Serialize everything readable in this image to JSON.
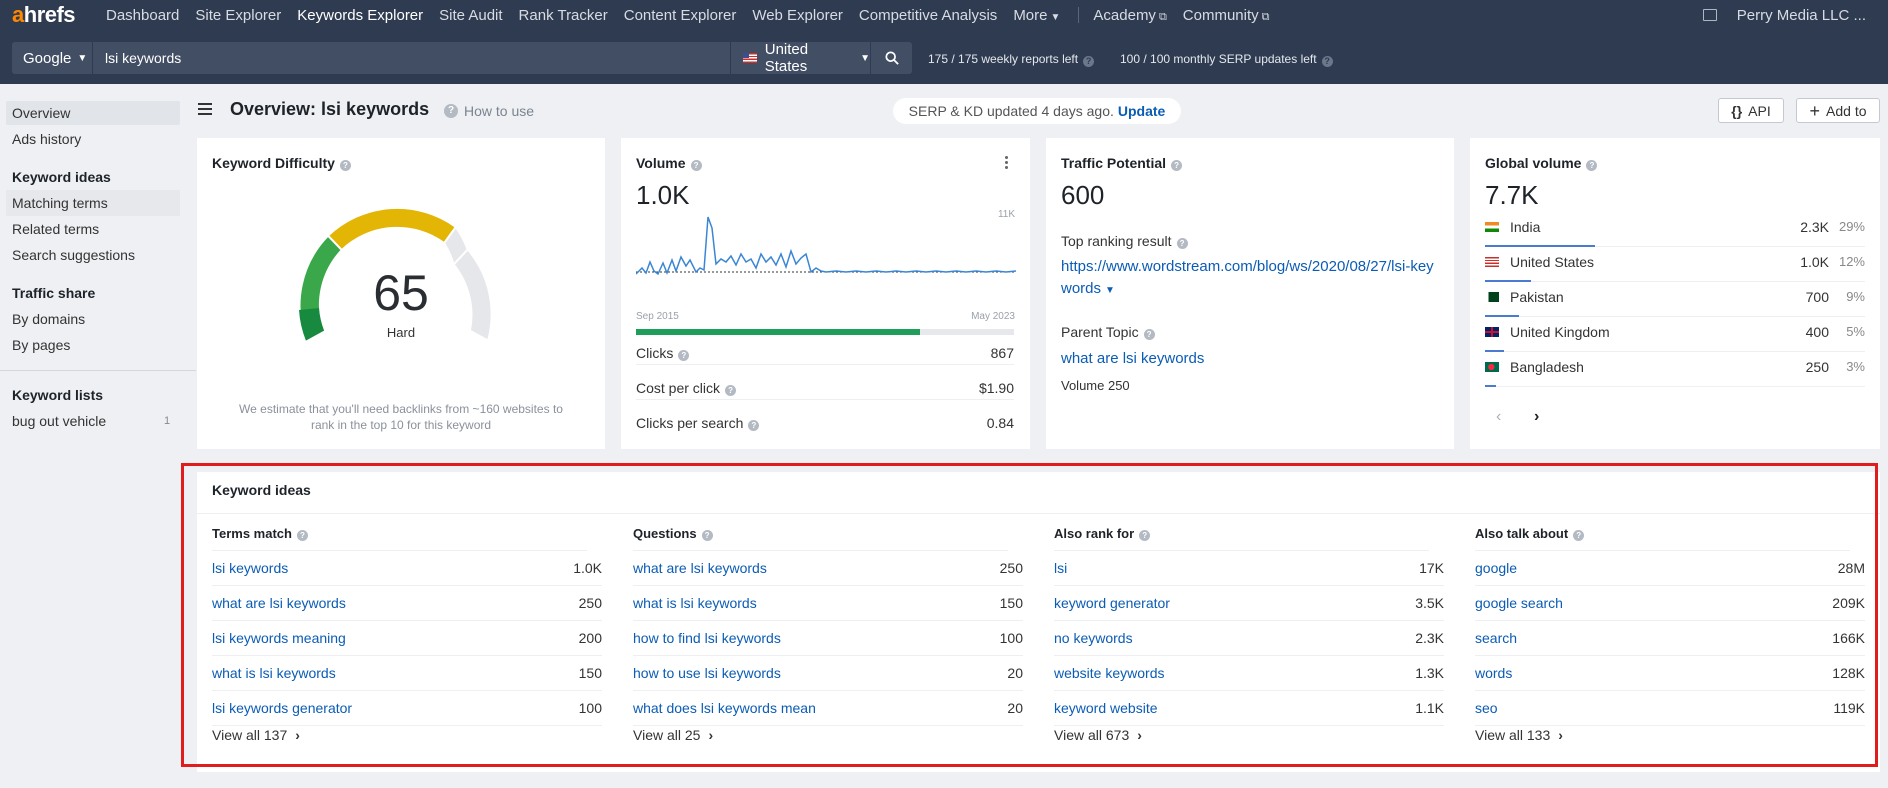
{
  "brand": {
    "logo_a": "a",
    "logo_rest": "hrefs"
  },
  "nav": {
    "items": [
      "Dashboard",
      "Site Explorer",
      "Keywords Explorer",
      "Site Audit",
      "Rank Tracker",
      "Content Explorer",
      "Web Explorer",
      "Competitive Analysis",
      "More"
    ],
    "external": [
      "Academy",
      "Community"
    ],
    "account": "Perry Media LLC ..."
  },
  "search": {
    "engine": "Google",
    "query": "lsi keywords",
    "country": "United States",
    "weekly_quota": "175  /  175  weekly reports left",
    "monthly_quota": "100  /  100  monthly SERP updates left"
  },
  "sidebar": {
    "overview": "Overview",
    "ads_history": "Ads history",
    "keyword_ideas_head": "Keyword ideas",
    "matching_terms": "Matching terms",
    "related_terms": "Related terms",
    "search_suggestions": "Search suggestions",
    "traffic_share_head": "Traffic share",
    "by_domains": "By domains",
    "by_pages": "By pages",
    "keyword_lists_head": "Keyword lists",
    "list_name": "bug out vehicle",
    "list_count": "1"
  },
  "header": {
    "title": "Overview: lsi keywords",
    "how_to": "How to use",
    "serp_status": "SERP & KD updated 4 days ago.",
    "update": "Update",
    "api": "API",
    "add_to": "Add to"
  },
  "kd": {
    "title": "Keyword Difficulty",
    "value": "65",
    "label": "Hard",
    "note": "We estimate that you'll need backlinks from ~160 websites to rank in the top 10 for this keyword"
  },
  "volume": {
    "title": "Volume",
    "value": "1.0K",
    "trend_max": "11K",
    "trend_start": "Sep 2015",
    "trend_end": "May 2023",
    "clicks_share": 0.75,
    "clicks_label": "Clicks",
    "clicks": "867",
    "cpc_label": "Cost per click",
    "cpc": "$1.90",
    "cps_label": "Clicks per search",
    "cps": "0.84"
  },
  "traffic": {
    "title": "Traffic Potential",
    "value": "600",
    "top_result_label": "Top ranking result",
    "top_result_url": "https://www.wordstream.com/blog/ws/2020/08/27/lsi-keywords",
    "parent_label": "Parent Topic",
    "parent_topic": "what are lsi keywords",
    "parent_volume": "Volume 250"
  },
  "global": {
    "title": "Global volume",
    "value": "7.7K",
    "countries": [
      {
        "name": "India",
        "value": "2.3K",
        "pct": "29%",
        "share": 0.29
      },
      {
        "name": "United States",
        "value": "1.0K",
        "pct": "12%",
        "share": 0.12
      },
      {
        "name": "Pakistan",
        "value": "700",
        "pct": "9%",
        "share": 0.09
      },
      {
        "name": "United Kingdom",
        "value": "400",
        "pct": "5%",
        "share": 0.05
      },
      {
        "name": "Bangladesh",
        "value": "250",
        "pct": "3%",
        "share": 0.03
      }
    ]
  },
  "ideas": {
    "title": "Keyword ideas",
    "columns": [
      {
        "head": "Terms match",
        "view_all": "View all 137",
        "rows": [
          [
            "lsi keywords",
            "1.0K"
          ],
          [
            "what are lsi keywords",
            "250"
          ],
          [
            "lsi keywords meaning",
            "200"
          ],
          [
            "what is lsi keywords",
            "150"
          ],
          [
            "lsi keywords generator",
            "100"
          ]
        ]
      },
      {
        "head": "Questions",
        "view_all": "View all 25",
        "rows": [
          [
            "what are lsi keywords",
            "250"
          ],
          [
            "what is lsi keywords",
            "150"
          ],
          [
            "how to find lsi keywords",
            "100"
          ],
          [
            "how to use lsi keywords",
            "20"
          ],
          [
            "what does lsi keywords mean",
            "20"
          ]
        ]
      },
      {
        "head": "Also rank for",
        "view_all": "View all 673",
        "rows": [
          [
            "lsi",
            "17K"
          ],
          [
            "keyword generator",
            "3.5K"
          ],
          [
            "no keywords",
            "2.3K"
          ],
          [
            "website keywords",
            "1.3K"
          ],
          [
            "keyword website",
            "1.1K"
          ]
        ]
      },
      {
        "head": "Also talk about",
        "view_all": "View all 133",
        "rows": [
          [
            "google",
            "28M"
          ],
          [
            "google search",
            "209K"
          ],
          [
            "search",
            "166K"
          ],
          [
            "words",
            "128K"
          ],
          [
            "seo",
            "119K"
          ]
        ]
      }
    ]
  },
  "colors": {
    "nav_bg": "#2f3b50",
    "link": "#0b5cb5",
    "highlight_frame": "#e11c1c",
    "gauge_green": "#2ea84f",
    "gauge_yellow": "#e8b400",
    "gauge_grey": "#e5e7ea"
  }
}
